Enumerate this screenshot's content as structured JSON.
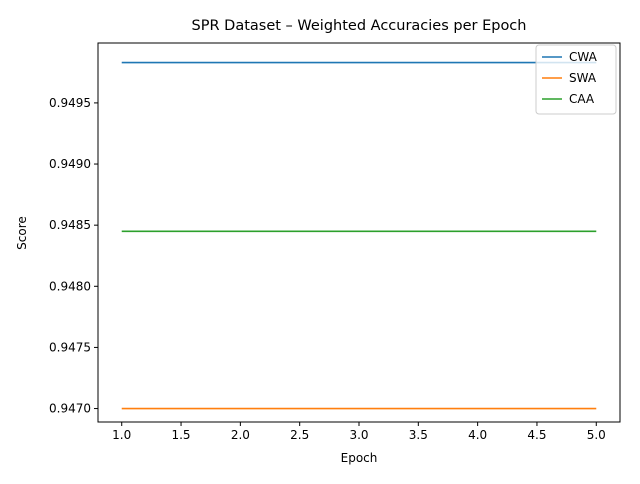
{
  "chart_data": {
    "type": "line",
    "title": "SPR Dataset – Weighted Accuracies per Epoch",
    "xlabel": "Epoch",
    "ylabel": "Score",
    "x": [
      1,
      2,
      3,
      4,
      5
    ],
    "xlim": [
      0.8,
      5.2
    ],
    "ylim": [
      0.94689,
      0.94999
    ],
    "xticks": [
      1.0,
      1.5,
      2.0,
      2.5,
      3.0,
      3.5,
      4.0,
      4.5,
      5.0
    ],
    "xtick_labels": [
      "1.0",
      "1.5",
      "2.0",
      "2.5",
      "3.0",
      "3.5",
      "4.0",
      "4.5",
      "5.0"
    ],
    "yticks": [
      0.947,
      0.9475,
      0.948,
      0.9485,
      0.949,
      0.9495
    ],
    "ytick_labels": [
      "0.9470",
      "0.9475",
      "0.9480",
      "0.9485",
      "0.9490",
      "0.9495"
    ],
    "grid": false,
    "legend_position": "top-right",
    "series": [
      {
        "name": "CWA",
        "color": "#1f77b4",
        "values": [
          0.94983,
          0.94983,
          0.94983,
          0.94983,
          0.94983
        ]
      },
      {
        "name": "SWA",
        "color": "#ff7f0e",
        "values": [
          0.947,
          0.947,
          0.947,
          0.947,
          0.947
        ]
      },
      {
        "name": "CAA",
        "color": "#2ca02c",
        "values": [
          0.94845,
          0.94845,
          0.94845,
          0.94845,
          0.94845
        ]
      }
    ]
  }
}
